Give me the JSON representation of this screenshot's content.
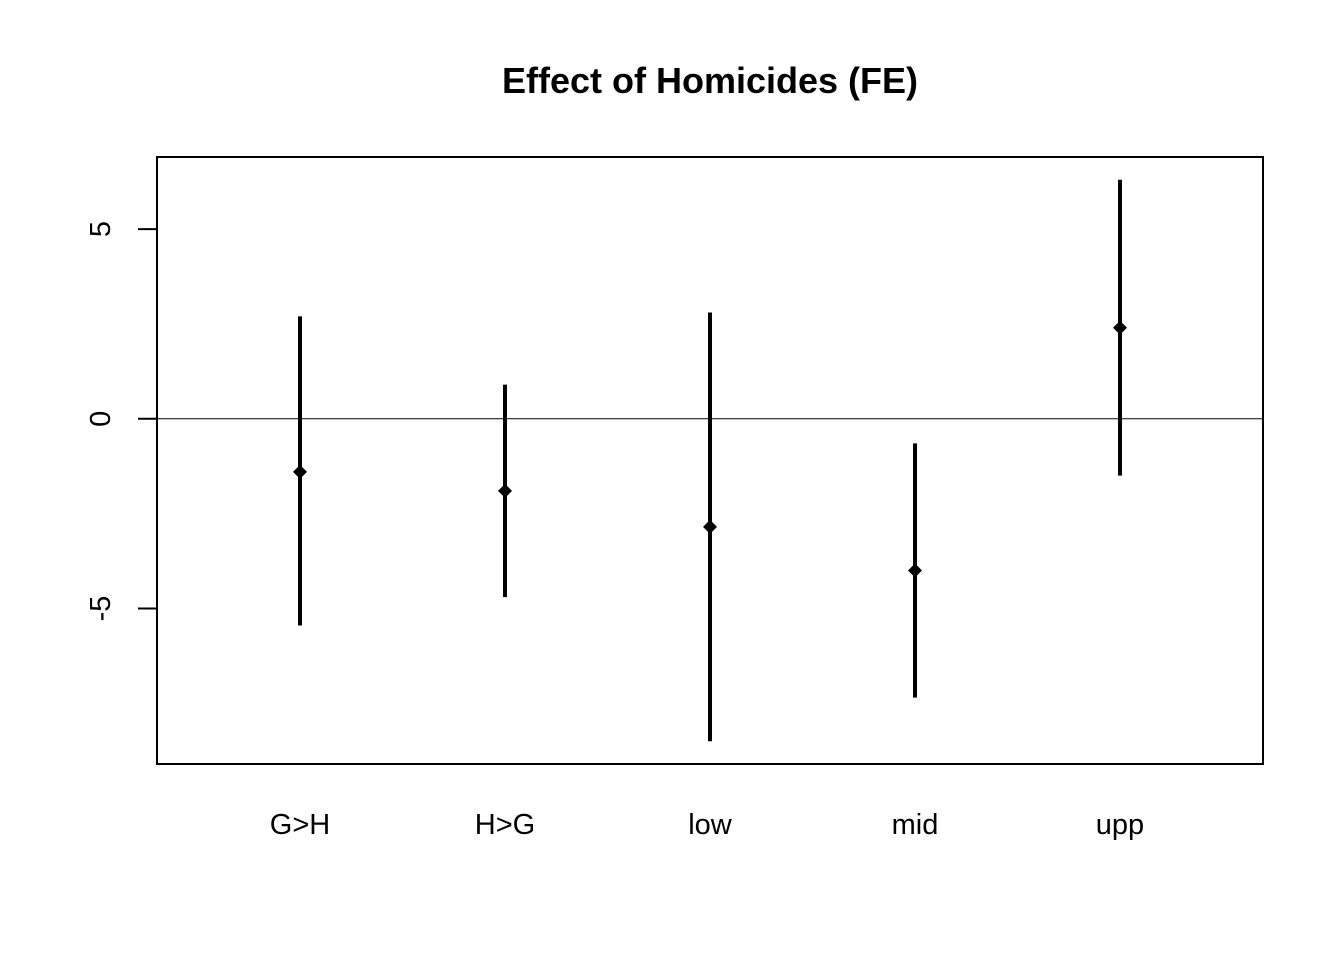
{
  "chart_data": {
    "type": "scatter",
    "subtype": "point-estimate-with-interval",
    "title": "Effect of Homicides (FE)",
    "xlabel": "",
    "ylabel": "",
    "categories": [
      "G>H",
      "H>G",
      "low",
      "mid",
      "upp"
    ],
    "estimates": [
      -1.4,
      -1.9,
      -2.85,
      -4.0,
      2.4
    ],
    "lower": [
      -5.45,
      -4.7,
      -8.5,
      -7.35,
      -1.5
    ],
    "upper": [
      2.7,
      0.9,
      2.8,
      -0.65,
      6.3
    ],
    "ylim": [
      -9.1,
      6.9
    ],
    "yticks": [
      5,
      0,
      -5
    ],
    "ytick_labels": [
      "5",
      "0",
      "-5"
    ],
    "reference_line": 0,
    "grid": false,
    "legend": "none",
    "color": "#000000"
  }
}
